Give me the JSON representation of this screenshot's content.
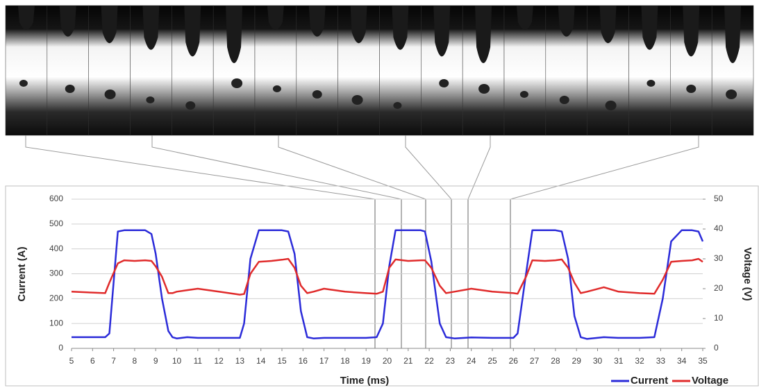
{
  "chart_data": {
    "type": "line",
    "x_label": "Time (ms)",
    "y_label": "Current (A)",
    "y2_label": "Voltage (V)",
    "x": [
      5,
      6,
      6.6,
      6.8,
      7.2,
      7.5,
      8,
      8.5,
      8.8,
      9,
      9.3,
      9.6,
      9.8,
      10,
      10.5,
      11,
      12,
      13,
      13.2,
      13.5,
      13.9,
      14.5,
      15,
      15.3,
      15.6,
      15.9,
      16.2,
      16.5,
      17,
      18,
      19,
      19.5,
      19.8,
      20.1,
      20.4,
      21,
      21.6,
      21.8,
      22.1,
      22.5,
      22.8,
      23.2,
      24,
      25,
      26,
      26.2,
      26.6,
      26.9,
      27.5,
      28,
      28.3,
      28.6,
      28.9,
      29.2,
      29.5,
      30.3,
      31,
      32,
      32.7,
      33.1,
      33.5,
      34,
      34.5,
      34.8,
      35
    ],
    "series": [
      {
        "name": "Current",
        "color": "#2b2bd9",
        "values": [
          45,
          45,
          45,
          60,
          470,
          475,
          475,
          475,
          460,
          380,
          200,
          70,
          45,
          40,
          45,
          42,
          42,
          42,
          100,
          360,
          475,
          475,
          475,
          470,
          380,
          150,
          45,
          40,
          42,
          42,
          42,
          45,
          100,
          330,
          475,
          475,
          475,
          470,
          350,
          100,
          45,
          40,
          44,
          42,
          42,
          60,
          300,
          475,
          475,
          475,
          470,
          360,
          130,
          45,
          38,
          45,
          42,
          42,
          45,
          200,
          430,
          475,
          475,
          470,
          430
        ]
      },
      {
        "name": "Voltage",
        "color": "#e02b2b",
        "axis": "y2",
        "values": [
          19,
          18.7,
          18.5,
          22,
          28.5,
          29.5,
          29.3,
          29.5,
          29.3,
          27.5,
          24,
          18.5,
          18.5,
          19,
          19.5,
          20,
          19,
          18,
          18.2,
          25,
          29,
          29.3,
          29.7,
          30,
          27,
          21,
          18.5,
          19,
          20,
          19,
          18.5,
          18.3,
          19,
          27,
          29.8,
          29.3,
          29.5,
          29.5,
          27,
          21,
          18.5,
          19,
          20,
          19,
          18.5,
          18.3,
          24,
          29.5,
          29.3,
          29.5,
          29.8,
          27,
          22,
          18.5,
          19,
          20.5,
          19,
          18.5,
          18.3,
          23,
          29,
          29.3,
          29.5,
          30,
          29
        ]
      }
    ],
    "xlim": [
      5,
      35
    ],
    "xticks": [
      5,
      6,
      7,
      8,
      9,
      10,
      11,
      12,
      13,
      14,
      15,
      16,
      17,
      18,
      19,
      20,
      21,
      22,
      23,
      24,
      25,
      26,
      27,
      28,
      29,
      30,
      31,
      32,
      33,
      34,
      35
    ],
    "ylim": [
      0,
      600
    ],
    "yticks": [
      0,
      100,
      200,
      300,
      400,
      500,
      600
    ],
    "y2lim": [
      0,
      50
    ],
    "y2ticks": [
      0,
      10,
      20,
      30,
      40,
      50
    ],
    "grid": true,
    "legend": "bottom-right"
  }
}
